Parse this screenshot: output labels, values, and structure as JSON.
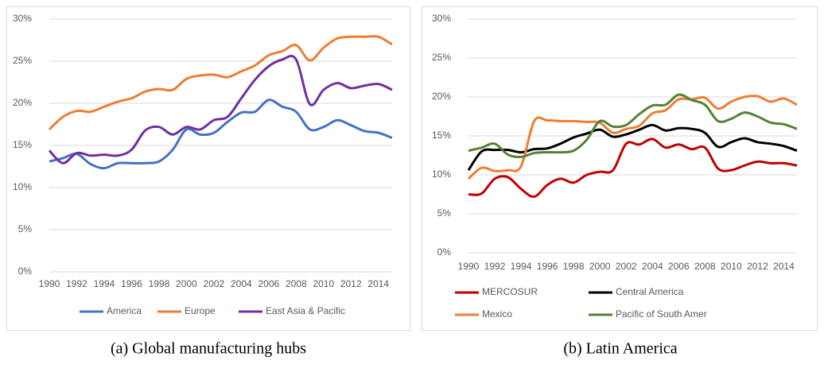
{
  "chart_data": [
    {
      "type": "line",
      "caption": "(a) Global manufacturing hubs",
      "x": [
        1990,
        1991,
        1992,
        1993,
        1994,
        1995,
        1996,
        1997,
        1998,
        1999,
        2000,
        2001,
        2002,
        2003,
        2004,
        2005,
        2006,
        2007,
        2008,
        2009,
        2010,
        2011,
        2012,
        2013,
        2014,
        2015
      ],
      "xlim": [
        1990,
        2015
      ],
      "xticks": [
        1990,
        1992,
        1994,
        1996,
        1998,
        2000,
        2002,
        2004,
        2006,
        2008,
        2010,
        2012,
        2014
      ],
      "ylim": [
        0,
        30
      ],
      "yticks": [
        {
          "value": 0,
          "label": "0%"
        },
        {
          "value": 5,
          "label": "5%"
        },
        {
          "value": 10,
          "label": "10%"
        },
        {
          "value": 15,
          "label": "15%"
        },
        {
          "value": 20,
          "label": "20%"
        },
        {
          "value": 25,
          "label": "25%"
        },
        {
          "value": 30,
          "label": "30%"
        }
      ],
      "grid": true,
      "legend": "bottom",
      "series": [
        {
          "name": "America",
          "color": "#4472c4",
          "values": [
            13.1,
            13.5,
            14.0,
            12.8,
            12.3,
            12.9,
            12.9,
            12.9,
            13.1,
            14.5,
            16.9,
            16.3,
            16.5,
            17.8,
            18.9,
            19.0,
            20.4,
            19.6,
            19.0,
            16.9,
            17.2,
            18.0,
            17.4,
            16.7,
            16.5,
            15.9
          ]
        },
        {
          "name": "Europe",
          "color": "#ed7d31",
          "values": [
            16.9,
            18.4,
            19.1,
            19.0,
            19.6,
            20.2,
            20.6,
            21.4,
            21.7,
            21.6,
            22.9,
            23.3,
            23.4,
            23.1,
            23.8,
            24.5,
            25.7,
            26.2,
            26.9,
            25.1,
            26.6,
            27.7,
            27.9,
            27.9,
            27.9,
            27.0
          ]
        },
        {
          "name": "East Asia & Pacific",
          "color": "#7030a0",
          "values": [
            14.4,
            12.9,
            14.1,
            13.8,
            13.9,
            13.8,
            14.5,
            16.8,
            17.2,
            16.3,
            17.2,
            16.9,
            18.0,
            18.4,
            20.6,
            22.8,
            24.4,
            25.2,
            25.2,
            19.9,
            21.6,
            22.4,
            21.8,
            22.1,
            22.3,
            21.6
          ]
        }
      ]
    },
    {
      "type": "line",
      "caption": "(b) Latin America",
      "x": [
        1990,
        1991,
        1992,
        1993,
        1994,
        1995,
        1996,
        1997,
        1998,
        1999,
        2000,
        2001,
        2002,
        2003,
        2004,
        2005,
        2006,
        2007,
        2008,
        2009,
        2010,
        2011,
        2012,
        2013,
        2014,
        2015
      ],
      "xlim": [
        1990,
        2015
      ],
      "xticks": [
        1990,
        1992,
        1994,
        1996,
        1998,
        2000,
        2002,
        2004,
        2006,
        2008,
        2010,
        2012,
        2014
      ],
      "ylim": [
        0,
        30
      ],
      "yticks": [
        {
          "value": 0,
          "label": "0%"
        },
        {
          "value": 5,
          "label": "5%"
        },
        {
          "value": 10,
          "label": "10%"
        },
        {
          "value": 15,
          "label": "15%"
        },
        {
          "value": 20,
          "label": "20%"
        },
        {
          "value": 25,
          "label": "25%"
        },
        {
          "value": 30,
          "label": "30%"
        }
      ],
      "grid": true,
      "legend": "bottom",
      "series": [
        {
          "name": "MERCOSUR",
          "color": "#c00000",
          "values": [
            7.5,
            7.6,
            9.5,
            9.7,
            8.2,
            7.2,
            8.7,
            9.5,
            9.0,
            10.0,
            10.4,
            10.6,
            14.0,
            13.9,
            14.6,
            13.5,
            13.9,
            13.3,
            13.5,
            10.8,
            10.6,
            11.2,
            11.7,
            11.5,
            11.5,
            11.2
          ]
        },
        {
          "name": "Central America",
          "color": "#000000",
          "values": [
            10.6,
            13.0,
            13.2,
            13.2,
            12.9,
            13.3,
            13.4,
            14.0,
            14.8,
            15.3,
            15.8,
            14.9,
            15.2,
            15.8,
            16.4,
            15.7,
            16.0,
            15.9,
            15.4,
            13.6,
            14.2,
            14.7,
            14.2,
            14.0,
            13.7,
            13.1
          ]
        },
        {
          "name": "Mexico",
          "color": "#ed7d31",
          "values": [
            9.5,
            10.9,
            10.5,
            10.6,
            11.1,
            16.9,
            17.0,
            16.9,
            16.9,
            16.8,
            16.7,
            15.4,
            15.9,
            16.3,
            17.9,
            18.3,
            19.7,
            19.7,
            19.9,
            18.5,
            19.4,
            20.0,
            20.1,
            19.4,
            19.8,
            19.0
          ]
        },
        {
          "name": "Pacific  of South Amer",
          "color": "#548235",
          "values": [
            13.1,
            13.5,
            14.0,
            12.6,
            12.3,
            12.8,
            12.9,
            12.9,
            13.1,
            14.5,
            16.9,
            16.2,
            16.4,
            17.8,
            18.9,
            19.0,
            20.3,
            19.6,
            19.0,
            16.9,
            17.2,
            18.0,
            17.5,
            16.7,
            16.5,
            15.9
          ]
        }
      ]
    }
  ]
}
